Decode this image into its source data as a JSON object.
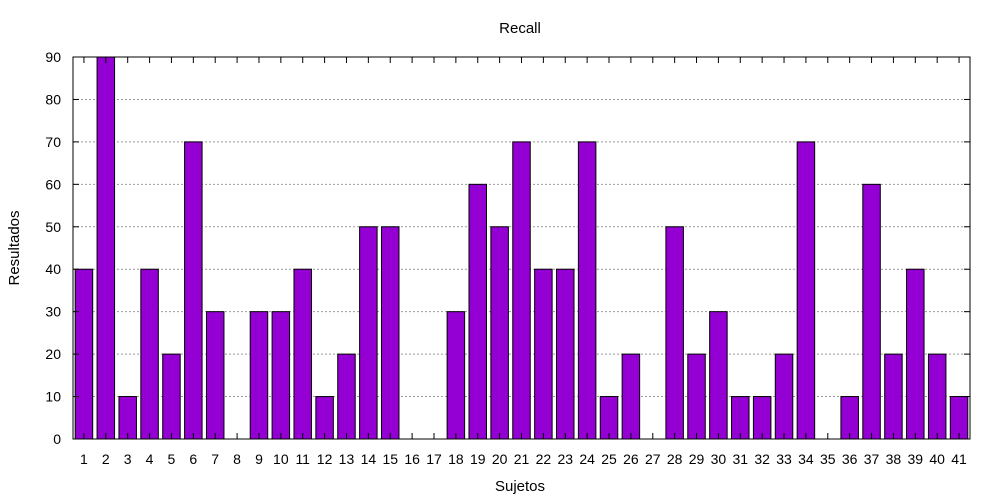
{
  "chart_data": {
    "type": "bar",
    "title": "Recall",
    "xlabel": "Sujetos",
    "ylabel": "Resultados",
    "ylim": [
      0,
      90
    ],
    "yticks": [
      0,
      10,
      20,
      30,
      40,
      50,
      60,
      70,
      80,
      90
    ],
    "grid": true,
    "legend": "none",
    "bar_color": "#9400d3",
    "categories": [
      "1",
      "2",
      "3",
      "4",
      "5",
      "6",
      "7",
      "8",
      "9",
      "10",
      "11",
      "12",
      "13",
      "14",
      "15",
      "16",
      "17",
      "18",
      "19",
      "20",
      "21",
      "22",
      "23",
      "24",
      "25",
      "26",
      "27",
      "28",
      "29",
      "30",
      "31",
      "32",
      "33",
      "34",
      "35",
      "36",
      "37",
      "38",
      "39",
      "40",
      "41"
    ],
    "values": [
      40,
      90,
      10,
      40,
      20,
      70,
      30,
      0,
      30,
      30,
      40,
      10,
      20,
      50,
      50,
      0,
      0,
      30,
      60,
      50,
      70,
      40,
      40,
      70,
      10,
      20,
      0,
      50,
      20,
      30,
      10,
      10,
      20,
      70,
      0,
      10,
      60,
      20,
      40,
      20,
      10
    ]
  }
}
